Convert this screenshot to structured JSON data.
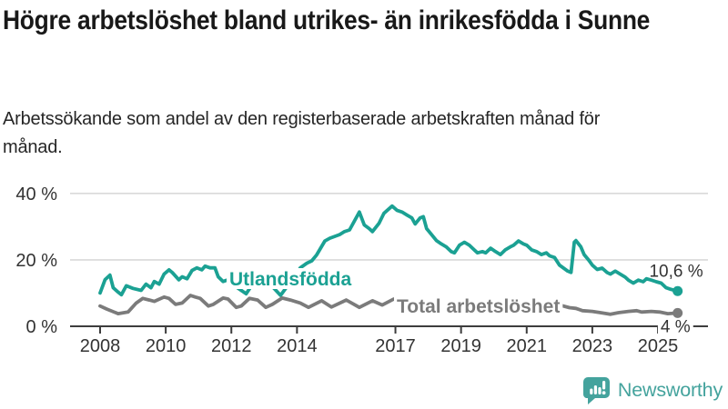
{
  "header": {
    "title": "Högre arbetslöshet bland utrikes- än inrikesfödda i Sunne",
    "subtitle": "Arbetssökande som andel av den registerbaserade arbetskraften månad för månad."
  },
  "chart_data": {
    "type": "line",
    "title": "Högre arbetslöshet bland utrikes- än inrikesfödda i Sunne",
    "subtitle": "Arbetssökande som andel av den registerbaserade arbetskraften månad för månad.",
    "unit": "percent of registered labour force",
    "grid": "horizontal",
    "x_axis": {
      "range": [
        2007.1,
        2026.5
      ],
      "ticks": [
        {
          "value": 2008,
          "label": "2008"
        },
        {
          "value": 2010,
          "label": "2010"
        },
        {
          "value": 2012,
          "label": "2012"
        },
        {
          "value": 2014,
          "label": "2014"
        },
        {
          "value": 2017,
          "label": "2017"
        },
        {
          "value": 2019,
          "label": "2019"
        },
        {
          "value": 2021,
          "label": "2021"
        },
        {
          "value": 2023,
          "label": "2023"
        },
        {
          "value": 2025,
          "label": "2025"
        }
      ]
    },
    "y_axis": {
      "range": [
        0,
        40
      ],
      "ticks": [
        {
          "value": 0,
          "label": "0 %"
        },
        {
          "value": 20,
          "label": "20 %"
        },
        {
          "value": 40,
          "label": "40 %"
        }
      ]
    },
    "series": [
      {
        "name": "Utlandsfödda",
        "color": "#1ba193",
        "end_label": "10,6 %",
        "end_value": 10.6,
        "points": [
          [
            2008.0,
            10.0
          ],
          [
            2008.15,
            14.0
          ],
          [
            2008.3,
            15.4
          ],
          [
            2008.4,
            11.6
          ],
          [
            2008.55,
            10.3
          ],
          [
            2008.65,
            9.5
          ],
          [
            2008.8,
            12.2
          ],
          [
            2009.0,
            11.4
          ],
          [
            2009.25,
            10.8
          ],
          [
            2009.4,
            12.7
          ],
          [
            2009.55,
            11.6
          ],
          [
            2009.65,
            13.5
          ],
          [
            2009.8,
            12.7
          ],
          [
            2009.95,
            15.7
          ],
          [
            2010.1,
            17.0
          ],
          [
            2010.2,
            16.2
          ],
          [
            2010.4,
            14.0
          ],
          [
            2010.5,
            14.9
          ],
          [
            2010.65,
            14.3
          ],
          [
            2010.8,
            16.8
          ],
          [
            2010.95,
            17.6
          ],
          [
            2011.1,
            17.0
          ],
          [
            2011.2,
            18.1
          ],
          [
            2011.35,
            17.6
          ],
          [
            2011.5,
            17.6
          ],
          [
            2011.6,
            14.9
          ],
          [
            2011.75,
            13.5
          ],
          [
            2011.9,
            14.0
          ],
          [
            2012.0,
            13.2
          ],
          [
            2012.2,
            11.5
          ],
          [
            2012.45,
            9.8
          ],
          [
            2012.6,
            12.0
          ],
          [
            2012.8,
            13.5
          ],
          [
            2013.0,
            14.0
          ],
          [
            2013.2,
            12.5
          ],
          [
            2013.5,
            9.3
          ],
          [
            2013.7,
            12.0
          ],
          [
            2013.9,
            14.5
          ],
          [
            2014.1,
            17.6
          ],
          [
            2014.3,
            19.0
          ],
          [
            2014.45,
            19.7
          ],
          [
            2014.6,
            21.5
          ],
          [
            2014.85,
            25.7
          ],
          [
            2015.0,
            26.5
          ],
          [
            2015.3,
            27.6
          ],
          [
            2015.45,
            28.5
          ],
          [
            2015.6,
            29.0
          ],
          [
            2015.75,
            31.7
          ],
          [
            2015.9,
            34.4
          ],
          [
            2016.05,
            30.5
          ],
          [
            2016.2,
            29.4
          ],
          [
            2016.3,
            28.5
          ],
          [
            2016.5,
            31.0
          ],
          [
            2016.65,
            34.0
          ],
          [
            2016.9,
            36.2
          ],
          [
            2017.05,
            34.9
          ],
          [
            2017.2,
            34.4
          ],
          [
            2017.35,
            33.5
          ],
          [
            2017.5,
            32.6
          ],
          [
            2017.6,
            30.8
          ],
          [
            2017.75,
            32.6
          ],
          [
            2017.85,
            33.0
          ],
          [
            2017.95,
            29.4
          ],
          [
            2018.1,
            27.6
          ],
          [
            2018.25,
            25.8
          ],
          [
            2018.4,
            24.8
          ],
          [
            2018.55,
            23.9
          ],
          [
            2018.7,
            22.5
          ],
          [
            2018.8,
            22.1
          ],
          [
            2018.95,
            24.4
          ],
          [
            2019.1,
            25.3
          ],
          [
            2019.25,
            24.4
          ],
          [
            2019.4,
            23.0
          ],
          [
            2019.5,
            22.1
          ],
          [
            2019.65,
            22.5
          ],
          [
            2019.75,
            22.1
          ],
          [
            2019.9,
            23.5
          ],
          [
            2020.05,
            22.5
          ],
          [
            2020.2,
            21.6
          ],
          [
            2020.35,
            23.0
          ],
          [
            2020.5,
            23.9
          ],
          [
            2020.6,
            24.4
          ],
          [
            2020.75,
            25.7
          ],
          [
            2020.9,
            24.8
          ],
          [
            2021.0,
            24.4
          ],
          [
            2021.15,
            23.0
          ],
          [
            2021.3,
            22.5
          ],
          [
            2021.45,
            21.6
          ],
          [
            2021.6,
            22.1
          ],
          [
            2021.7,
            21.2
          ],
          [
            2021.85,
            20.7
          ],
          [
            2022.0,
            18.4
          ],
          [
            2022.25,
            16.6
          ],
          [
            2022.35,
            16.2
          ],
          [
            2022.45,
            25.3
          ],
          [
            2022.5,
            25.8
          ],
          [
            2022.65,
            23.9
          ],
          [
            2022.75,
            21.6
          ],
          [
            2022.9,
            19.8
          ],
          [
            2023.0,
            18.4
          ],
          [
            2023.15,
            17.1
          ],
          [
            2023.3,
            17.5
          ],
          [
            2023.45,
            16.2
          ],
          [
            2023.55,
            15.7
          ],
          [
            2023.7,
            16.6
          ],
          [
            2023.85,
            15.7
          ],
          [
            2024.0,
            14.8
          ],
          [
            2024.1,
            13.9
          ],
          [
            2024.25,
            13.0
          ],
          [
            2024.4,
            13.9
          ],
          [
            2024.55,
            13.4
          ],
          [
            2024.65,
            14.3
          ],
          [
            2024.8,
            13.9
          ],
          [
            2024.95,
            13.4
          ],
          [
            2025.1,
            13.0
          ],
          [
            2025.25,
            11.6
          ],
          [
            2025.4,
            11.1
          ],
          [
            2025.6,
            10.6
          ]
        ]
      },
      {
        "name": "Total arbetslöshet",
        "color": "#7b7b7b",
        "end_label": "4 %",
        "end_value": 4.0,
        "points": [
          [
            2008.0,
            6.1
          ],
          [
            2008.2,
            5.2
          ],
          [
            2008.55,
            3.8
          ],
          [
            2008.85,
            4.3
          ],
          [
            2009.1,
            7.0
          ],
          [
            2009.3,
            8.4
          ],
          [
            2009.5,
            7.9
          ],
          [
            2009.65,
            7.5
          ],
          [
            2009.95,
            8.8
          ],
          [
            2010.1,
            8.4
          ],
          [
            2010.3,
            6.6
          ],
          [
            2010.5,
            7.0
          ],
          [
            2010.75,
            9.3
          ],
          [
            2010.9,
            8.8
          ],
          [
            2011.05,
            8.4
          ],
          [
            2011.3,
            6.1
          ],
          [
            2011.45,
            6.6
          ],
          [
            2011.75,
            8.5
          ],
          [
            2011.9,
            8.2
          ],
          [
            2012.15,
            5.7
          ],
          [
            2012.3,
            6.1
          ],
          [
            2012.55,
            8.4
          ],
          [
            2012.8,
            7.9
          ],
          [
            2013.05,
            5.7
          ],
          [
            2013.25,
            6.6
          ],
          [
            2013.55,
            8.5
          ],
          [
            2013.8,
            7.9
          ],
          [
            2014.1,
            7.0
          ],
          [
            2014.35,
            5.7
          ],
          [
            2014.75,
            7.7
          ],
          [
            2015.05,
            5.8
          ],
          [
            2015.5,
            7.9
          ],
          [
            2015.9,
            5.7
          ],
          [
            2016.3,
            7.7
          ],
          [
            2016.6,
            6.4
          ],
          [
            2016.95,
            8.2
          ],
          [
            2017.1,
            7.8
          ],
          [
            2017.4,
            6.2
          ],
          [
            2017.7,
            7.0
          ],
          [
            2018.0,
            7.8
          ],
          [
            2018.4,
            6.0
          ],
          [
            2018.8,
            7.2
          ],
          [
            2019.1,
            7.5
          ],
          [
            2019.4,
            6.2
          ],
          [
            2019.8,
            6.8
          ],
          [
            2020.1,
            7.0
          ],
          [
            2020.4,
            8.0
          ],
          [
            2020.7,
            7.6
          ],
          [
            2021.0,
            7.8
          ],
          [
            2021.4,
            6.6
          ],
          [
            2021.8,
            6.2
          ],
          [
            2022.0,
            6.4
          ],
          [
            2022.3,
            5.6
          ],
          [
            2022.5,
            5.4
          ],
          [
            2022.7,
            4.7
          ],
          [
            2023.0,
            4.5
          ],
          [
            2023.25,
            4.1
          ],
          [
            2023.55,
            3.6
          ],
          [
            2023.8,
            4.1
          ],
          [
            2024.1,
            4.5
          ],
          [
            2024.35,
            4.7
          ],
          [
            2024.5,
            4.3
          ],
          [
            2024.8,
            4.5
          ],
          [
            2025.05,
            4.3
          ],
          [
            2025.3,
            3.8
          ],
          [
            2025.6,
            4.0
          ]
        ]
      }
    ],
    "colors": {
      "grid": "#d9d9d9",
      "axis": "#3d3d3d",
      "tick_label": "#333333",
      "end_label": "#333333"
    }
  },
  "footer": {
    "brand": "Newsworthy",
    "brand_color": "#44a39d",
    "logo_icon": "newsworthy-bar-chart-bubble-icon"
  }
}
